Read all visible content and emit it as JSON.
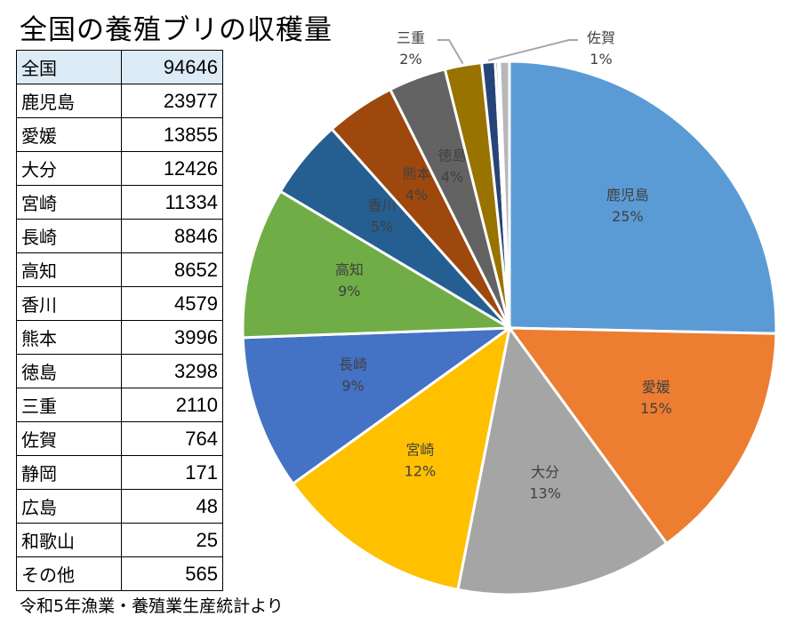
{
  "title": "全国の養殖ブリの収穫量",
  "footnote": "令和5年漁業・養殖業生産統計より",
  "table": [
    {
      "name": "全国",
      "value": "94646"
    },
    {
      "name": "鹿児島",
      "value": "23977"
    },
    {
      "name": "愛媛",
      "value": "13855"
    },
    {
      "name": "大分",
      "value": "12426"
    },
    {
      "name": "宮崎",
      "value": "11334"
    },
    {
      "name": "長崎",
      "value": "8846"
    },
    {
      "name": "高知",
      "value": "8652"
    },
    {
      "name": "香川",
      "value": "4579"
    },
    {
      "name": "熊本",
      "value": "3996"
    },
    {
      "name": "徳島",
      "value": "3298"
    },
    {
      "name": "三重",
      "value": "2110"
    },
    {
      "name": "佐賀",
      "value": "764"
    },
    {
      "name": "静岡",
      "value": "171"
    },
    {
      "name": "広島",
      "value": "48"
    },
    {
      "name": "和歌山",
      "value": "25"
    },
    {
      "name": "その他",
      "value": "565"
    }
  ],
  "chart_data": {
    "type": "pie",
    "start": "12 o'clock, clockwise",
    "categories": [
      "鹿児島",
      "愛媛",
      "大分",
      "宮崎",
      "長崎",
      "高知",
      "香川",
      "熊本",
      "徳島",
      "三重",
      "佐賀",
      "静岡",
      "広島",
      "和歌山",
      "その他"
    ],
    "values": [
      23977,
      13855,
      12426,
      11334,
      8846,
      8652,
      4579,
      3996,
      3298,
      2110,
      764,
      171,
      48,
      25,
      565
    ],
    "labels": [
      "25%",
      "15%",
      "13%",
      "12%",
      "9%",
      "9%",
      "5%",
      "4%",
      "4%",
      "2%",
      "1%",
      "",
      "",
      "",
      ""
    ],
    "show_label": [
      true,
      true,
      true,
      true,
      true,
      true,
      true,
      true,
      true,
      true,
      true,
      false,
      false,
      false,
      false
    ],
    "outside_label": [
      false,
      false,
      false,
      false,
      false,
      false,
      false,
      false,
      false,
      true,
      true,
      false,
      false,
      false,
      false
    ],
    "colors": [
      "#5B9BD5",
      "#ED7D31",
      "#A5A5A5",
      "#FFC000",
      "#4472C4",
      "#70AD47",
      "#255E91",
      "#9E480E",
      "#636363",
      "#997300",
      "#264478",
      "#43682B",
      "#698ED0",
      "#F1975A",
      "#B7B7B7"
    ]
  }
}
